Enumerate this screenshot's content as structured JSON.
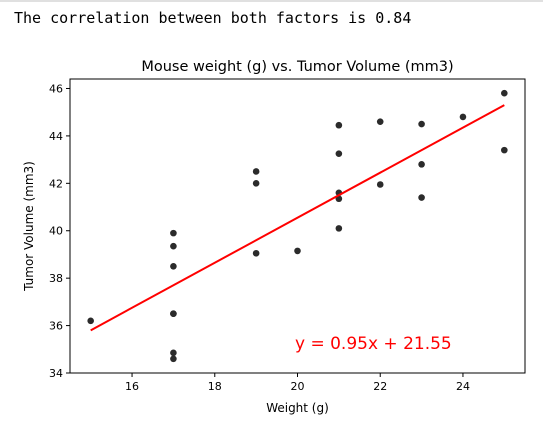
{
  "output": {
    "text": "The correlation between both factors is 0.84"
  },
  "chart_data": {
    "type": "scatter",
    "title": "Mouse weight (g) vs. Tumor Volume (mm3)",
    "xlabel": "Weight (g)",
    "ylabel": "Tumor Volume (mm3)",
    "xlim": [
      14.5,
      25.5
    ],
    "ylim": [
      34,
      46.4
    ],
    "xticks": [
      16,
      18,
      20,
      22,
      24
    ],
    "yticks": [
      34,
      36,
      38,
      40,
      42,
      44,
      46
    ],
    "grid": false,
    "point_color": "#2b2b2b",
    "points": [
      {
        "x": 15,
        "y": 36.2
      },
      {
        "x": 17,
        "y": 39.9
      },
      {
        "x": 17,
        "y": 39.35
      },
      {
        "x": 17,
        "y": 38.5
      },
      {
        "x": 17,
        "y": 36.5
      },
      {
        "x": 17,
        "y": 36.5
      },
      {
        "x": 17,
        "y": 34.85
      },
      {
        "x": 17,
        "y": 34.6
      },
      {
        "x": 19,
        "y": 42.5
      },
      {
        "x": 19,
        "y": 42.0
      },
      {
        "x": 19,
        "y": 39.05
      },
      {
        "x": 20,
        "y": 39.15
      },
      {
        "x": 21,
        "y": 44.45
      },
      {
        "x": 21,
        "y": 43.25
      },
      {
        "x": 21,
        "y": 41.6
      },
      {
        "x": 21,
        "y": 41.35
      },
      {
        "x": 21,
        "y": 40.1
      },
      {
        "x": 22,
        "y": 44.6
      },
      {
        "x": 22,
        "y": 41.95
      },
      {
        "x": 23,
        "y": 44.5
      },
      {
        "x": 23,
        "y": 42.8
      },
      {
        "x": 23,
        "y": 41.4
      },
      {
        "x": 24,
        "y": 44.8
      },
      {
        "x": 25,
        "y": 45.8
      },
      {
        "x": 25,
        "y": 43.4
      }
    ],
    "regression": {
      "slope": 0.95,
      "intercept": 21.55,
      "x_start": 15,
      "x_end": 25,
      "color": "#ff0000",
      "label": "y = 0.95x + 21.55"
    }
  }
}
